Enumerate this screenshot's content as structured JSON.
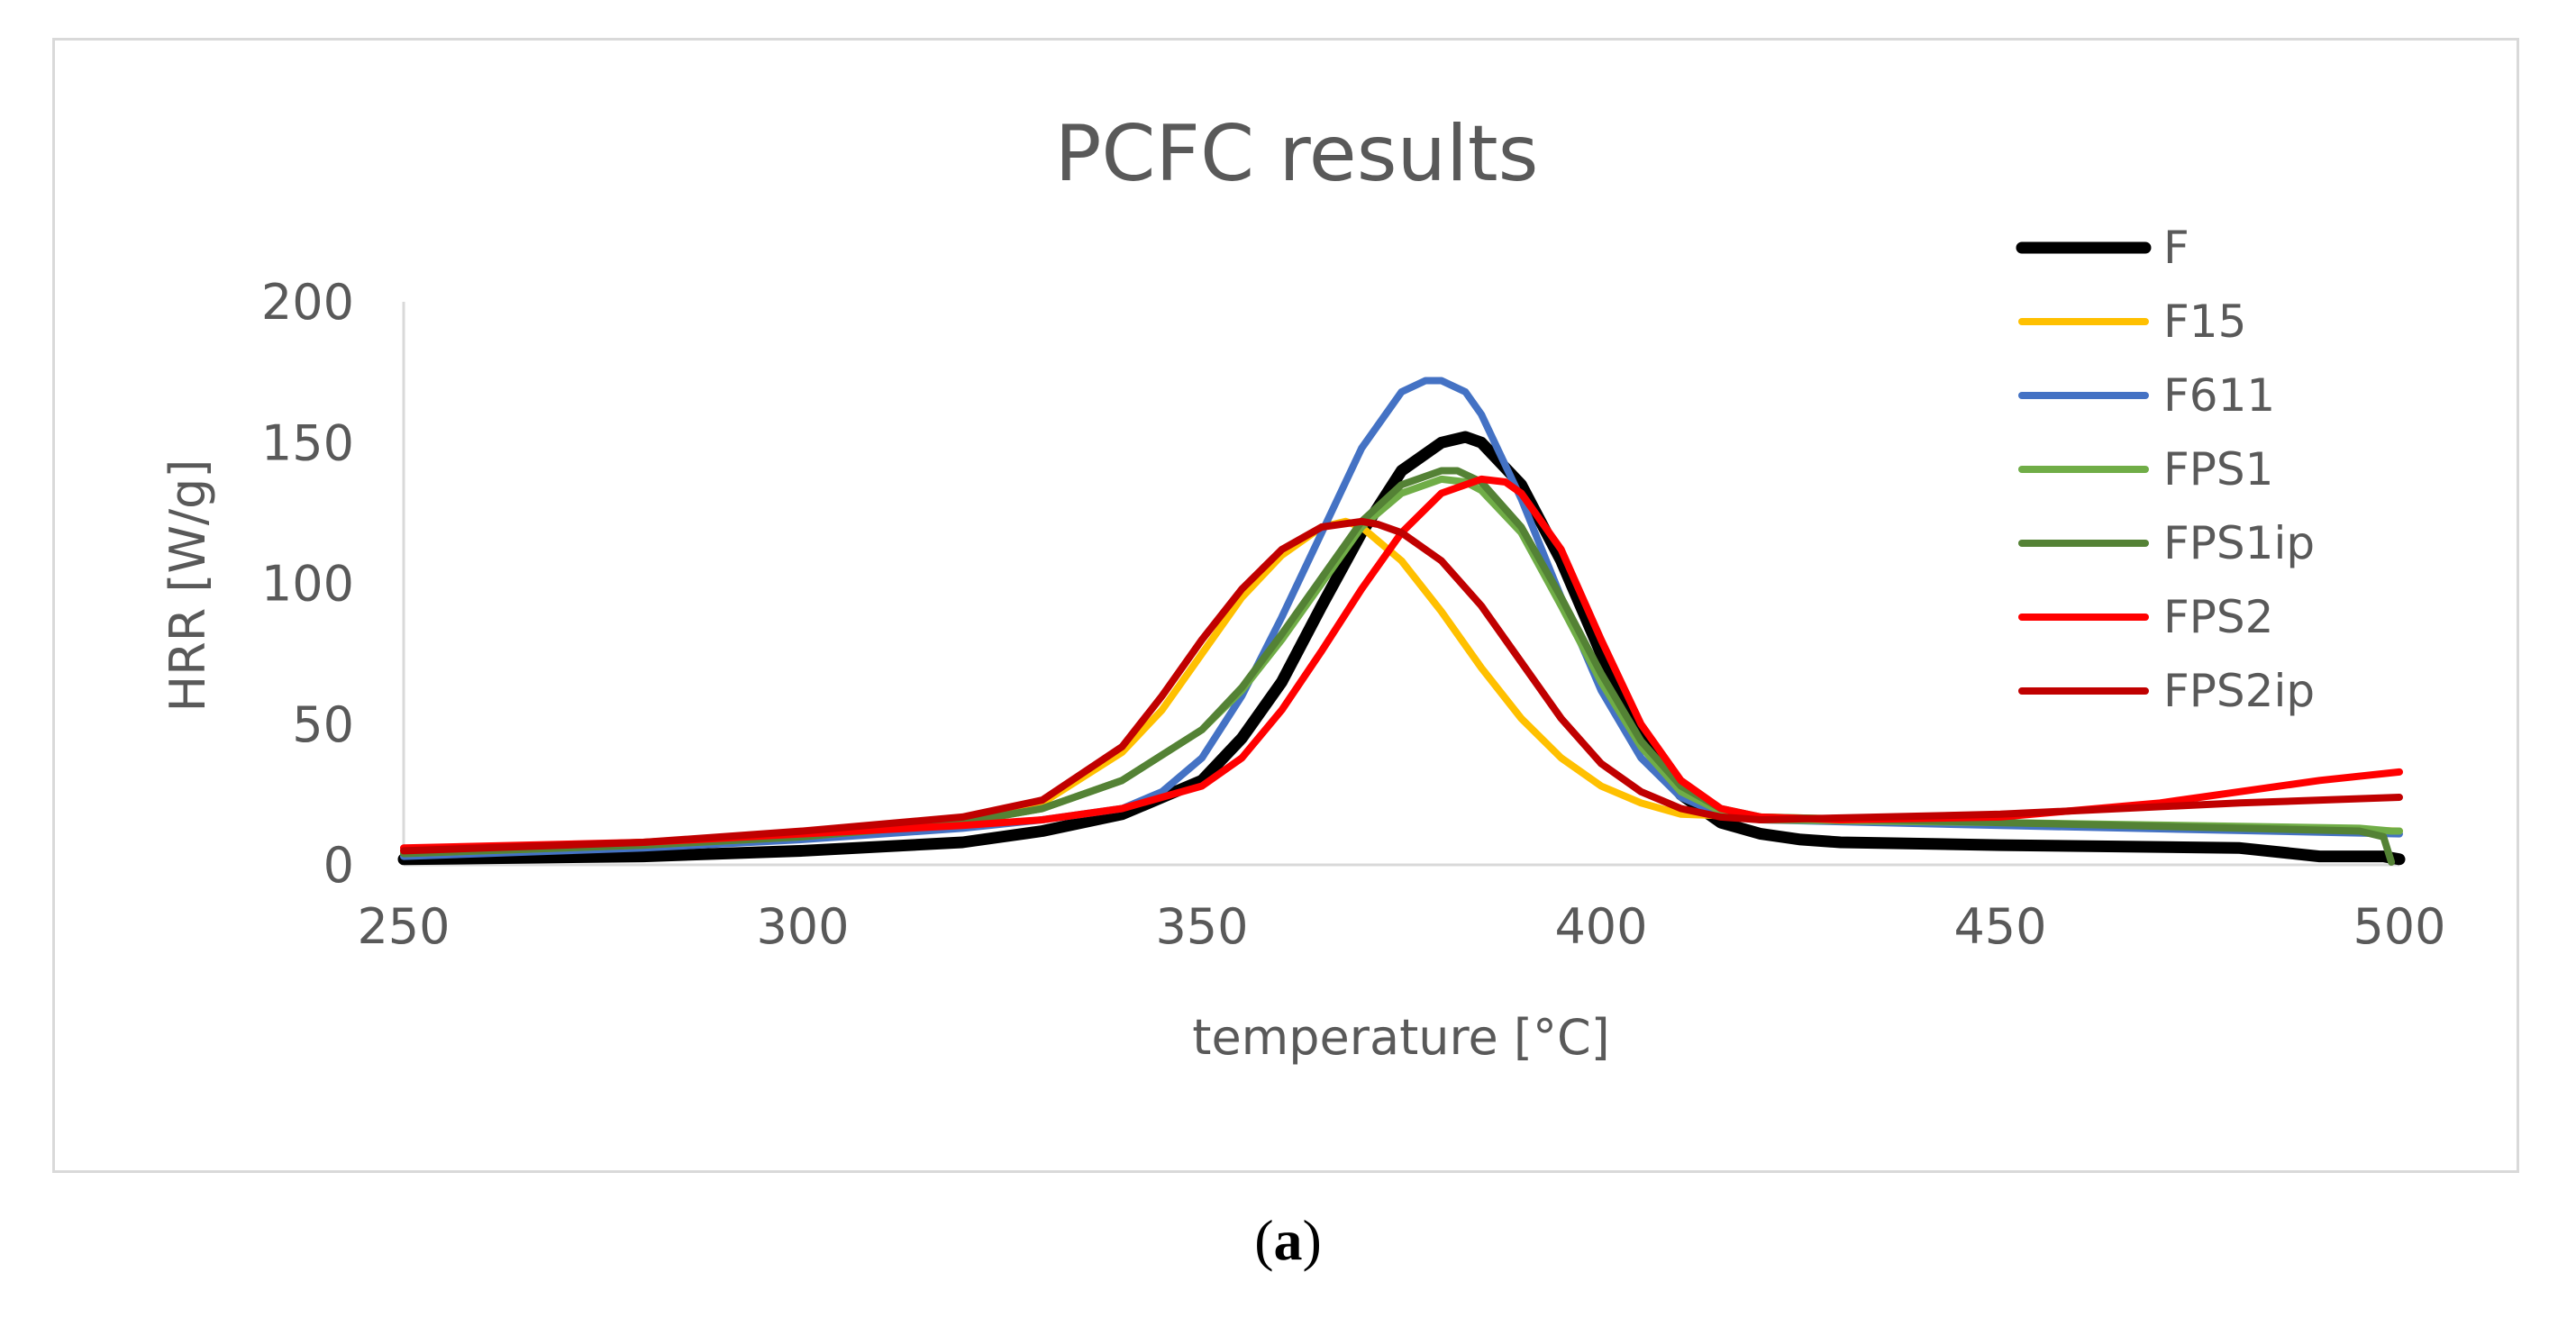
{
  "caption": {
    "open": "(",
    "letter": "a",
    "close": ")"
  },
  "chart_data": {
    "type": "line",
    "title": "PCFC results",
    "xlabel": "temperature [°C]",
    "ylabel": "HRR [W/g]",
    "xlim": [
      250,
      500
    ],
    "ylim": [
      0,
      200
    ],
    "xticks": [
      250,
      300,
      350,
      400,
      450,
      500
    ],
    "yticks": [
      0,
      50,
      100,
      150,
      200
    ],
    "grid": false,
    "legend_position": "top-right",
    "series": [
      {
        "name": "F",
        "color": "#000000",
        "x": [
          250,
          280,
          300,
          320,
          330,
          340,
          350,
          355,
          360,
          365,
          370,
          375,
          380,
          383,
          385,
          390,
          395,
          400,
          405,
          410,
          415,
          420,
          425,
          430,
          450,
          480,
          490,
          498,
          500
        ],
        "y": [
          2,
          3,
          5,
          8,
          12,
          18,
          30,
          45,
          65,
          92,
          118,
          140,
          150,
          152,
          150,
          135,
          108,
          75,
          45,
          25,
          15,
          11,
          9,
          8,
          7,
          6,
          3,
          3,
          2
        ]
      },
      {
        "name": "F15",
        "color": "#ffc000",
        "x": [
          250,
          280,
          300,
          320,
          330,
          340,
          345,
          350,
          355,
          360,
          365,
          368,
          370,
          375,
          380,
          385,
          390,
          395,
          400,
          405,
          410,
          420,
          450,
          480,
          500
        ],
        "y": [
          5,
          8,
          11,
          16,
          22,
          40,
          55,
          75,
          95,
          110,
          120,
          122,
          120,
          108,
          90,
          70,
          52,
          38,
          28,
          22,
          18,
          17,
          15,
          13,
          12
        ]
      },
      {
        "name": "F611",
        "color": "#4472c4",
        "x": [
          250,
          280,
          300,
          320,
          330,
          340,
          345,
          350,
          355,
          360,
          365,
          370,
          375,
          378,
          380,
          383,
          385,
          390,
          395,
          400,
          405,
          410,
          415,
          420,
          450,
          500
        ],
        "y": [
          3,
          6,
          9,
          13,
          16,
          20,
          26,
          38,
          60,
          88,
          118,
          148,
          168,
          172,
          172,
          168,
          160,
          130,
          95,
          62,
          38,
          24,
          18,
          16,
          14,
          11
        ]
      },
      {
        "name": "FPS1",
        "color": "#70ad47",
        "x": [
          250,
          280,
          300,
          320,
          330,
          340,
          350,
          355,
          360,
          365,
          370,
          375,
          380,
          383,
          385,
          390,
          395,
          400,
          405,
          410,
          415,
          420,
          450,
          495,
          499,
          500
        ],
        "y": [
          4,
          7,
          10,
          15,
          20,
          30,
          48,
          62,
          80,
          100,
          120,
          132,
          137,
          136,
          133,
          118,
          92,
          65,
          42,
          26,
          19,
          16,
          15,
          13,
          12,
          12
        ]
      },
      {
        "name": "FPS1ip",
        "color": "#548235",
        "x": [
          250,
          280,
          300,
          320,
          330,
          340,
          350,
          355,
          360,
          365,
          370,
          375,
          380,
          382,
          385,
          390,
          395,
          400,
          405,
          410,
          415,
          420,
          450,
          495,
          498,
          499
        ],
        "y": [
          4,
          7,
          10,
          15,
          20,
          30,
          48,
          63,
          82,
          102,
          122,
          135,
          140,
          140,
          136,
          120,
          95,
          68,
          44,
          28,
          20,
          17,
          15,
          12,
          10,
          1
        ]
      },
      {
        "name": "FPS2",
        "color": "#ff0000",
        "x": [
          250,
          280,
          300,
          320,
          330,
          340,
          350,
          355,
          360,
          365,
          370,
          375,
          380,
          385,
          388,
          390,
          395,
          400,
          405,
          410,
          415,
          420,
          430,
          450,
          470,
          490,
          500
        ],
        "y": [
          6,
          8,
          11,
          14,
          16,
          20,
          28,
          38,
          55,
          76,
          98,
          118,
          132,
          137,
          136,
          132,
          112,
          80,
          50,
          30,
          20,
          17,
          16,
          17,
          22,
          30,
          33
        ]
      },
      {
        "name": "FPS2ip",
        "color": "#c00000",
        "x": [
          250,
          280,
          300,
          320,
          330,
          340,
          345,
          350,
          355,
          360,
          365,
          370,
          372,
          375,
          380,
          385,
          390,
          395,
          400,
          405,
          410,
          415,
          420,
          450,
          480,
          500
        ],
        "y": [
          5,
          8,
          12,
          17,
          23,
          42,
          60,
          80,
          98,
          112,
          120,
          122,
          121,
          118,
          108,
          92,
          72,
          52,
          36,
          26,
          20,
          17,
          16,
          18,
          22,
          24
        ]
      }
    ]
  }
}
